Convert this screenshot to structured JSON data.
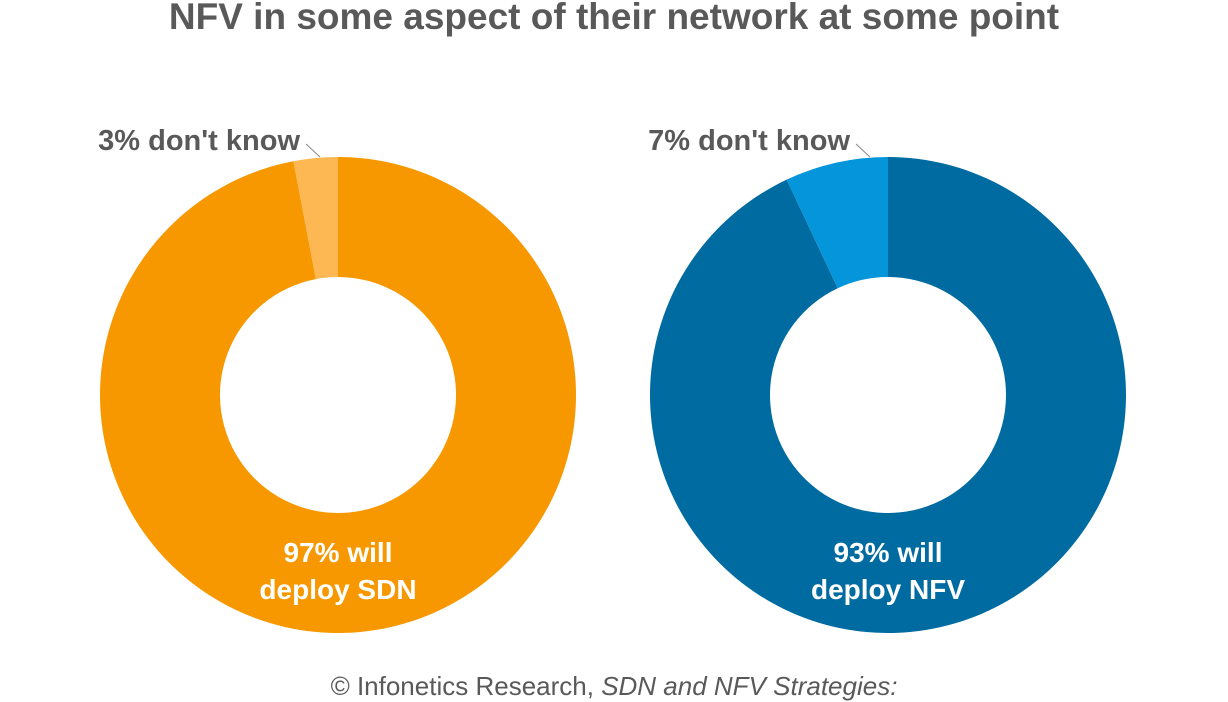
{
  "title": "NFV in some aspect of their network at some point",
  "footer": {
    "source": "© Infonetics Research, ",
    "report": "SDN and NFV Strategies:"
  },
  "chart_data": [
    {
      "type": "pie",
      "donut": true,
      "slices": [
        {
          "label": "97% will deploy SDN",
          "label_lines": [
            "97% will",
            "deploy SDN"
          ],
          "value": 97,
          "color": "#F79800"
        },
        {
          "label": "3% don't know",
          "value": 3,
          "color": "#FDB853"
        }
      ]
    },
    {
      "type": "pie",
      "donut": true,
      "slices": [
        {
          "label": "93% will deploy NFV",
          "label_lines": [
            "93% will",
            "deploy NFV"
          ],
          "value": 93,
          "color": "#006BA1"
        },
        {
          "label": "7% don't know",
          "value": 7,
          "color": "#0595DA"
        }
      ]
    }
  ]
}
